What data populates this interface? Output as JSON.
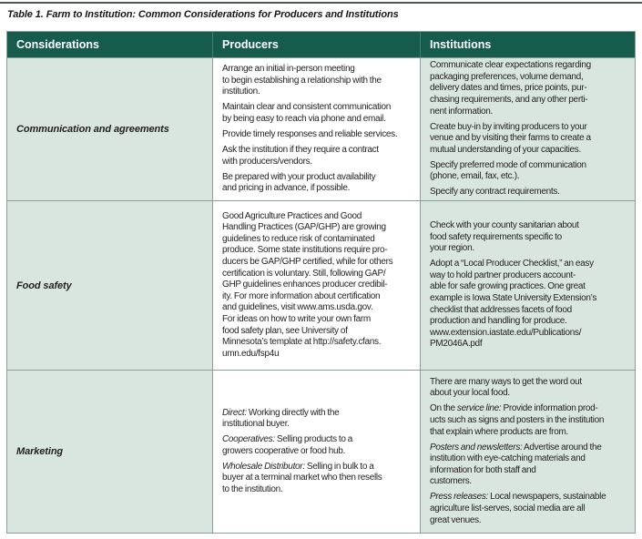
{
  "title": "Table 1. Farm to Institution: Common Considerations for Producers and Institutions",
  "colors": {
    "header_bg": "#155c4c",
    "header_text": "#ffffff",
    "shaded_cell_bg": "#d9e5df",
    "border": "#8d9d97",
    "body_text": "#231f20"
  },
  "table": {
    "headers": [
      "Considerations",
      "Producers",
      "Institutions"
    ],
    "rows": [
      {
        "consideration": "Communication and agreements",
        "producers": [
          "Arrange an initial in-person meeting\nto begin establishing a relationship with the\ninstitution.",
          "Maintain clear and consistent communication\nby being easy to reach via phone and email.",
          "Provide timely responses and reliable services.",
          "Ask the institution if they require a contract\nwith producers/vendors.",
          "Be prepared with your product availability\nand pricing in advance, if possible."
        ],
        "institutions": [
          "Communicate clear expectations regarding\npackaging preferences, volume demand,\ndelivery dates and times, price points, pur-\nchasing requirements, and any other perti-\nnent information.",
          "Create buy-in by inviting producers to your\nvenue and by visiting their farms to create a\nmutual understanding of your capacities.",
          "Specify preferred mode of communication\n(phone, email, fax, etc.).",
          "Specify any contract requirements."
        ]
      },
      {
        "consideration": "Food safety",
        "producers": [
          "Good Agriculture Practices and Good\nHandling Practices (GAP/GHP) are growing\nguidelines to reduce risk of contaminated\nproduce. Some state institutions require pro-\nducers be GAP/GHP certified, while for others\ncertification is voluntary. Still, following GAP/\nGHP guidelines enhances producer credibil-\nity. For more information about certification\nand guidelines, visit www.ams.usda.gov.\nFor ideas on how to write your own farm\nfood safety plan, see University of\nMinnesota’s template  at http://safety.cfans.\numn.edu/fsp4u"
        ],
        "institutions": [
          "Check with your county sanitarian about\nfood safety requirements specific to\nyour region.",
          "Adopt a “Local Producer Checklist,” an easy\nway to hold partner producers account-\nable for safe growing practices. One great\nexample is Iowa State University Extension’s\nchecklist that addresses facets of food\nproduction and handling for produce.\nwww.extension.iastate.edu/Publications/\nPM2046A.pdf"
        ]
      },
      {
        "consideration": "Marketing",
        "producers": [
          {
            "lead": "Direct:",
            "rest": " Working directly with the\ninstitutional buyer."
          },
          {
            "lead": "Cooperatives:",
            "rest": " Selling products to a\ngrowers cooperative or food hub."
          },
          {
            "lead": "Wholesale Distributor:",
            "rest": " Selling in bulk to a\nbuyer at a terminal market who then resells\nto the institution."
          }
        ],
        "institutions": [
          {
            "rest": "There are many ways to get the word out\nabout your local food."
          },
          {
            "pre": "On the ",
            "lead": "service line:",
            "rest": " Provide information prod-\nucts such as signs and posters in the institution\nthat explain where products are from."
          },
          {
            "lead": "Posters and newsletters:",
            "rest": " Advertise around the\ninstitution with eye-catching materials and\ninformation for both staff and\ncustomers."
          },
          {
            "lead": "Press releases:",
            "rest": " Local newspapers, sustainable\nagriculture list-serves, social media are all\ngreat venues."
          }
        ]
      }
    ]
  }
}
